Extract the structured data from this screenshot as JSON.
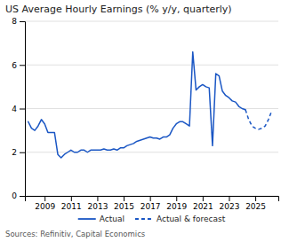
{
  "chart_data": {
    "type": "line",
    "title": "US Average Hourly Earnings (% y/y, quarterly)",
    "source": "Sources: Refinitiv, Capital Economics",
    "series": [
      {
        "name": "Actual",
        "color": "#1a56c4",
        "line_style": "solid",
        "x": [
          2007.75,
          2008.0,
          2008.25,
          2008.5,
          2008.75,
          2009.0,
          2009.25,
          2009.5,
          2009.75,
          2010.0,
          2010.25,
          2010.5,
          2010.75,
          2011.0,
          2011.25,
          2011.5,
          2011.75,
          2012.0,
          2012.25,
          2012.5,
          2012.75,
          2013.0,
          2013.25,
          2013.5,
          2013.75,
          2014.0,
          2014.25,
          2014.5,
          2014.75,
          2015.0,
          2015.25,
          2015.5,
          2015.75,
          2016.0,
          2016.25,
          2016.5,
          2016.75,
          2017.0,
          2017.25,
          2017.5,
          2017.75,
          2018.0,
          2018.25,
          2018.5,
          2018.75,
          2019.0,
          2019.25,
          2019.5,
          2019.75,
          2020.0,
          2020.25,
          2020.5,
          2020.75,
          2021.0,
          2021.25,
          2021.5,
          2021.75,
          2022.0,
          2022.25,
          2022.5,
          2022.75,
          2023.0,
          2023.25,
          2023.5,
          2023.75,
          2024.0,
          2024.25
        ],
        "values": [
          3.4,
          3.1,
          3.0,
          3.2,
          3.5,
          3.3,
          2.9,
          2.9,
          2.9,
          1.9,
          1.75,
          1.9,
          2.0,
          2.1,
          2.0,
          2.0,
          2.1,
          2.1,
          2.0,
          2.1,
          2.1,
          2.1,
          2.1,
          2.15,
          2.1,
          2.1,
          2.15,
          2.1,
          2.2,
          2.2,
          2.3,
          2.35,
          2.4,
          2.5,
          2.55,
          2.6,
          2.65,
          2.7,
          2.65,
          2.65,
          2.6,
          2.7,
          2.7,
          2.8,
          3.1,
          3.3,
          3.4,
          3.4,
          3.3,
          3.2,
          6.6,
          4.85,
          5.0,
          5.1,
          5.0,
          4.95,
          2.3,
          5.6,
          5.5,
          4.8,
          4.6,
          4.5,
          4.35,
          4.3,
          4.1,
          4.0,
          3.95
        ]
      },
      {
        "name": "Actual & forecast",
        "color": "#1a56c4",
        "line_style": "dashed",
        "x": [
          2024.25,
          2024.5,
          2024.75,
          2025.0,
          2025.25,
          2025.5,
          2025.75,
          2026.0,
          2026.25
        ],
        "values": [
          3.95,
          3.5,
          3.2,
          3.1,
          3.05,
          3.1,
          3.2,
          3.5,
          3.9
        ]
      }
    ],
    "xlim": [
      2007.5,
      2026.75
    ],
    "xticks": [
      2009,
      2011,
      2013,
      2015,
      2017,
      2019,
      2021,
      2023,
      2025
    ],
    "ylim": [
      0,
      8
    ],
    "yticks": [
      0,
      2,
      4,
      6,
      8
    ],
    "grid": "y",
    "legend": "bottom"
  }
}
